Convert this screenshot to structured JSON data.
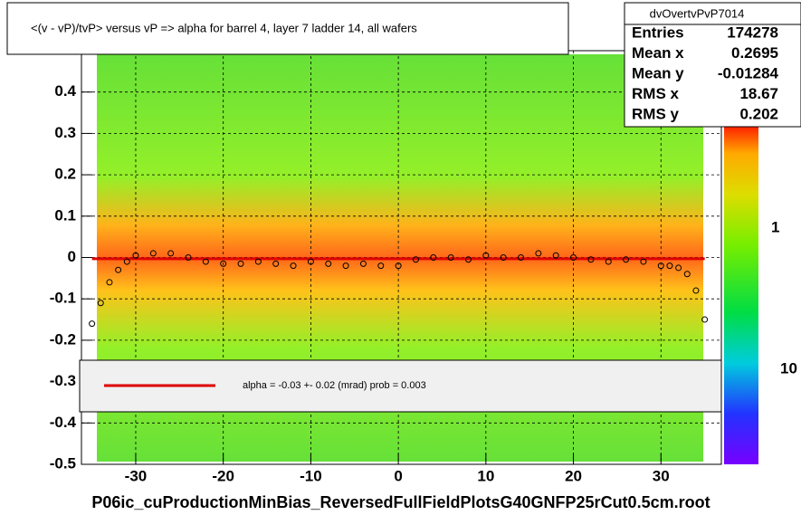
{
  "chart_data": {
    "type": "profile",
    "title": "<(v - vP)/tvP> versus   vP => alpha for barrel 4, layer 7 ladder 14, all wafers",
    "stats": {
      "name": "dvOvertvPvP7014",
      "rows": [
        [
          "Entries",
          "174278"
        ],
        [
          "Mean x",
          "0.2695"
        ],
        [
          "Mean y",
          "-0.01284"
        ],
        [
          "RMS x",
          "18.67"
        ],
        [
          "RMS y",
          "0.202"
        ]
      ]
    },
    "legend": "alpha =   -0.03 +-  0.02 (mrad) prob = 0.003",
    "footer": "P06ic_cuProductionMinBias_ReversedFullFieldPlotsG40GNFP25rCut0.5cm.root",
    "palette_labels": [
      "1",
      "10"
    ],
    "xlim": [
      -36.2,
      36.9
    ],
    "ylim": [
      -0.5,
      0.5
    ],
    "xticks": [
      -30,
      -20,
      -10,
      0,
      10,
      20,
      30
    ],
    "yticks": [
      -0.5,
      -0.4,
      -0.3,
      -0.2,
      -0.1,
      0,
      0.1,
      0.2,
      0.3,
      0.4,
      0.5
    ],
    "x": [
      -35,
      -34,
      -33,
      -32,
      -31,
      -30,
      -28,
      -26,
      -24,
      -22,
      -20,
      -18,
      -16,
      -14,
      -12,
      -10,
      -8,
      -6,
      -4,
      -2,
      0,
      2,
      4,
      6,
      8,
      10,
      12,
      14,
      16,
      18,
      20,
      22,
      24,
      26,
      28,
      30,
      31,
      32,
      33,
      34,
      35
    ],
    "values": [
      -0.16,
      -0.11,
      -0.06,
      -0.03,
      -0.01,
      0.005,
      0.01,
      0.01,
      0.0,
      -0.01,
      -0.015,
      -0.015,
      -0.01,
      -0.015,
      -0.02,
      -0.01,
      -0.015,
      -0.02,
      -0.015,
      -0.02,
      -0.02,
      -0.005,
      0.0,
      0.0,
      -0.005,
      0.005,
      0.0,
      0.0,
      0.01,
      0.005,
      0.0,
      -0.005,
      -0.01,
      -0.005,
      -0.01,
      -0.02,
      -0.02,
      -0.025,
      -0.04,
      -0.08,
      -0.15
    ],
    "color": "#000000",
    "fit": {
      "x": [
        -35,
        35
      ],
      "y": [
        -0.003,
        -0.003
      ],
      "color": "#dd0000"
    }
  }
}
